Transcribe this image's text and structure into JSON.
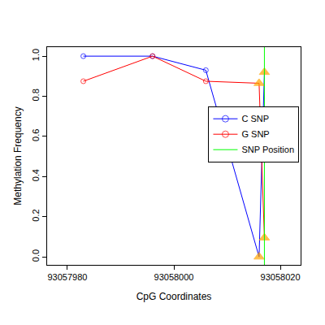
{
  "chart_data": {
    "type": "line",
    "x_label": "CpG Coordinates",
    "y_label": "Methylation Frequency",
    "xlim": [
      93057976.2,
      93058023.8
    ],
    "xticks": [
      93057980,
      93058000,
      93058020
    ],
    "ylim": [
      -0.04,
      1.045
    ],
    "yticks": [
      {
        "value": 0,
        "label": "0.0"
      },
      {
        "value": 0.2,
        "label": "0.2"
      },
      {
        "value": 0.4,
        "label": "0.4"
      },
      {
        "value": 0.6,
        "label": "0.6"
      },
      {
        "value": 0.8,
        "label": "0.8"
      },
      {
        "value": 1,
        "label": "1.0"
      }
    ],
    "grid": false,
    "legend": "right",
    "series": [
      {
        "name": "C SNP",
        "color": "#0000FF",
        "marker": "circle",
        "x": [
          93057983,
          93057996,
          93058006,
          93058016,
          93058017
        ],
        "values": [
          1.0,
          1.0,
          0.93,
          0.0,
          0.92
        ],
        "colors": [
          "#0000FF",
          "#0000FF",
          "#0000FF",
          "#FFA500",
          "#FFA500"
        ]
      },
      {
        "name": "G SNP",
        "color": "#FF0000",
        "marker": "circle",
        "x": [
          93057983,
          93057996,
          93058006,
          93058016,
          93058017
        ],
        "values": [
          0.875,
          1.0,
          0.875,
          0.865,
          0.095
        ],
        "colors": [
          "#FF0000",
          "#FF0000",
          "#FF0000",
          "#FFA500",
          "#FFA500"
        ]
      },
      {
        "name": "SNP Position",
        "color": "#00FF00",
        "type": "vline",
        "x": [
          93058017
        ]
      }
    ]
  }
}
